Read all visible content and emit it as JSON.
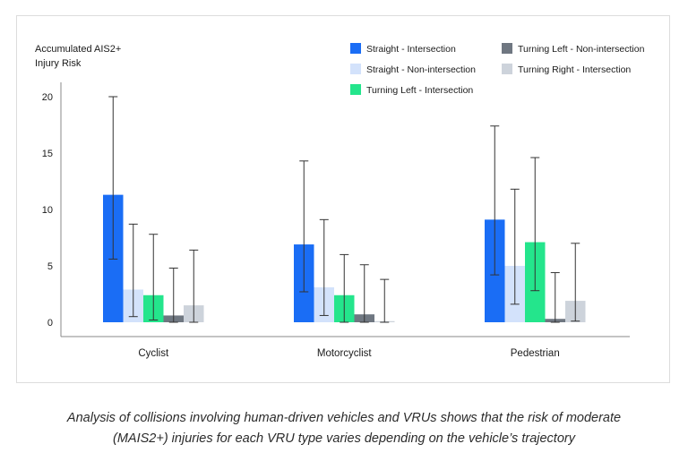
{
  "chart_data": {
    "type": "bar",
    "ylabel_lines": [
      "Accumulated AIS2+",
      "Injury Risk"
    ],
    "categories": [
      "Cyclist",
      "Motorcyclist",
      "Pedestrian"
    ],
    "yticks": [
      0,
      5,
      10,
      15,
      20
    ],
    "ylim": [
      0,
      21
    ],
    "legend_position": "top-right",
    "grid": false,
    "series": [
      {
        "name": "Straight - Intersection",
        "color": "#1a6df5",
        "values": [
          11.3,
          6.9,
          9.1
        ],
        "err_low": [
          5.6,
          2.7,
          4.2
        ],
        "err_high": [
          20.0,
          14.3,
          17.4
        ]
      },
      {
        "name": "Straight - Non-intersection",
        "color": "#d3e2fb",
        "values": [
          2.9,
          3.1,
          5.0
        ],
        "err_low": [
          0.5,
          0.6,
          1.6
        ],
        "err_high": [
          8.7,
          9.1,
          11.8
        ]
      },
      {
        "name": "Turning Left - Intersection",
        "color": "#24e58c",
        "values": [
          2.4,
          2.4,
          7.1
        ],
        "err_low": [
          0.2,
          0.0,
          2.8
        ],
        "err_high": [
          7.8,
          6.0,
          14.6
        ]
      },
      {
        "name": "Turning Left - Non-intersection",
        "color": "#6f7781",
        "values": [
          0.6,
          0.7,
          0.3
        ],
        "err_low": [
          0.0,
          0.0,
          0.0
        ],
        "err_high": [
          4.8,
          5.1,
          4.4
        ]
      },
      {
        "name": "Turning Right - Intersection",
        "color": "#cdd3db",
        "values": [
          1.5,
          0.1,
          1.9
        ],
        "err_low": [
          0.0,
          0.0,
          0.1
        ],
        "err_high": [
          6.4,
          3.8,
          7.0
        ]
      }
    ]
  },
  "caption": {
    "line1": "Analysis of collisions involving human-driven vehicles and VRUs shows that the risk of moderate",
    "line2": "(MAIS2+) injuries for each VRU type varies depending on the vehicle’s trajectory"
  }
}
